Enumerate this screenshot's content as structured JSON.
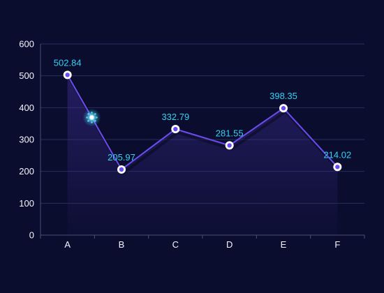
{
  "chart_data": {
    "type": "line",
    "categories": [
      "A",
      "B",
      "C",
      "D",
      "E",
      "F"
    ],
    "series": [
      {
        "values": [
          502.84,
          205.97,
          332.79,
          281.55,
          398.35,
          214.02
        ]
      }
    ],
    "data_labels": [
      "502.84",
      "205.97",
      "332.79",
      "281.55",
      "398.35",
      "214.02"
    ],
    "y_ticks": [
      "0",
      "100",
      "200",
      "300",
      "400",
      "500",
      "600"
    ],
    "ylim": [
      0,
      600
    ],
    "grid": true,
    "area_fill": true,
    "colors": {
      "background": "#0a0d2e",
      "line": "#6a4df0",
      "area": "#3a2a8a",
      "label": "#33d2f2",
      "tick_text": "#f5f6ff",
      "grid": "#2a2f5a",
      "glow": "#33d2f2"
    }
  }
}
